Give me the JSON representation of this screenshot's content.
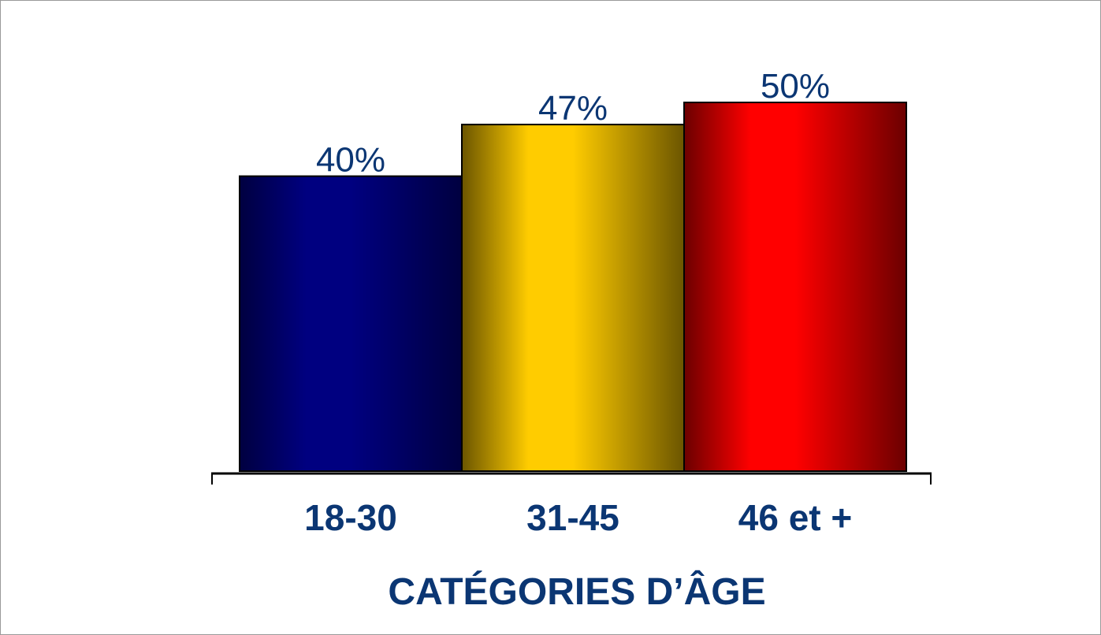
{
  "chart_data": {
    "type": "bar",
    "categories": [
      "18-30",
      "31-45",
      "46 et +"
    ],
    "values": [
      40,
      47,
      50
    ],
    "value_labels": [
      "40%",
      "47%",
      "50%"
    ],
    "xlabel": "CATÉGORIES D’ÂGE",
    "ylabel": "",
    "ylim": [
      0,
      50
    ],
    "grid": false,
    "legend": "none",
    "bar_colors": [
      "#000080",
      "#ffcc00",
      "#ff0000"
    ],
    "bar_shades": [
      "#000040",
      "#6b5500",
      "#6b0000"
    ],
    "label_color": "#0b3673",
    "axis_color": "#000000"
  }
}
